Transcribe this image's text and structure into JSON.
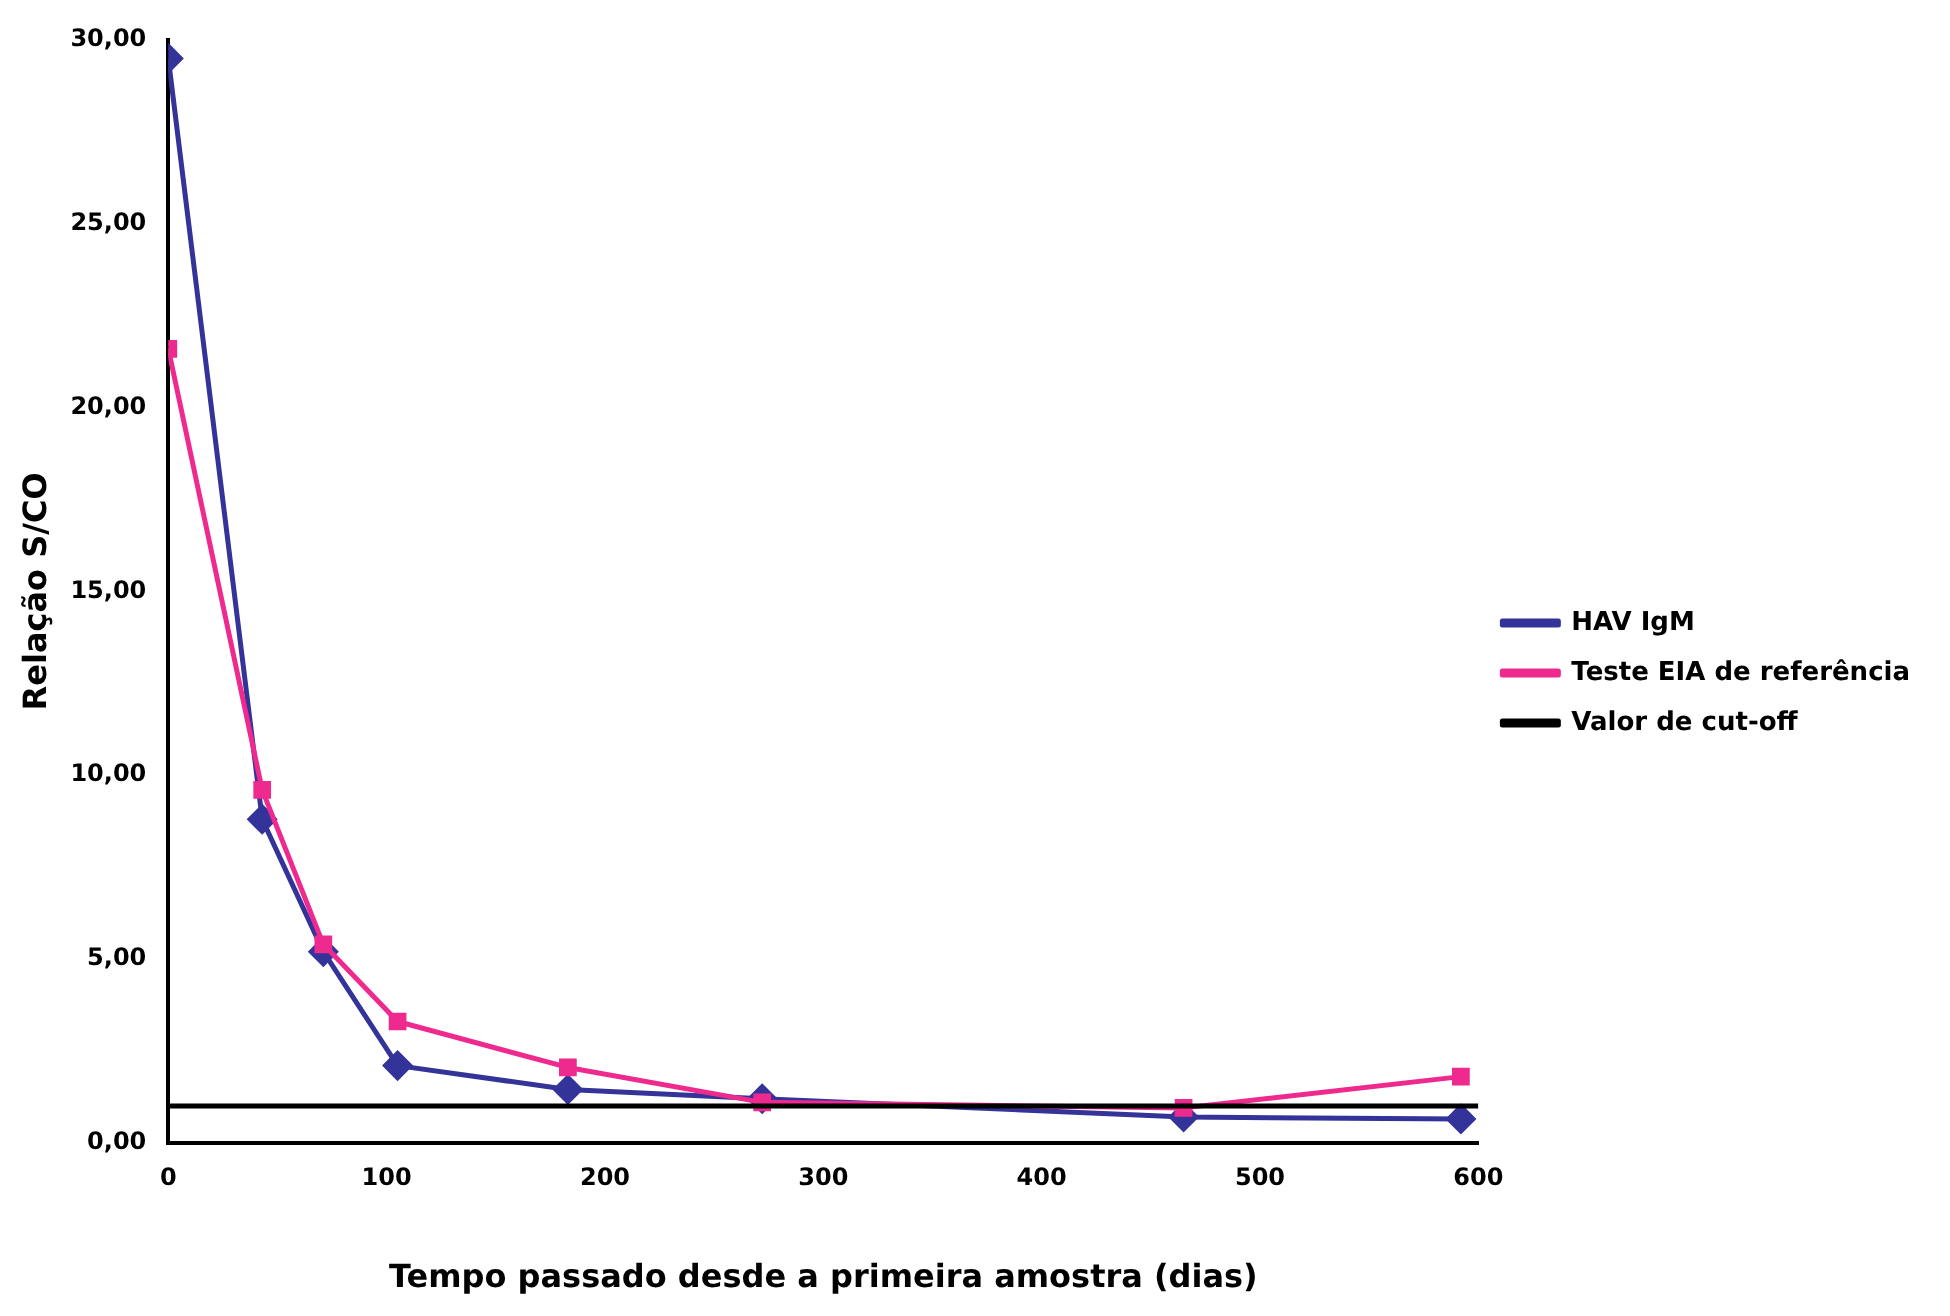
{
  "chart_data": {
    "type": "line",
    "xlabel": "Tempo passado desde a primeira amostra (dias)",
    "ylabel": "Relação S/CO",
    "xlim": [
      0,
      600
    ],
    "xticks": [
      0,
      100,
      200,
      300,
      400,
      500,
      600
    ],
    "ylim": [
      0,
      30
    ],
    "yticks": [
      {
        "value": 0,
        "label": "0,00"
      },
      {
        "value": 5,
        "label": "5,00"
      },
      {
        "value": 10,
        "label": "10,00"
      },
      {
        "value": 15,
        "label": "15,00"
      },
      {
        "value": 20,
        "label": "20,00"
      },
      {
        "value": 25,
        "label": "25,00"
      },
      {
        "value": 30,
        "label": "30,00"
      }
    ],
    "grid": false,
    "legend": "right",
    "line_style": "solid",
    "series": [
      {
        "name": "HAV IgM",
        "color": "#333399",
        "marker": "diamond",
        "x": [
          0,
          43,
          71,
          105,
          183,
          272,
          465,
          592
        ],
        "values": [
          29.5,
          8.8,
          5.2,
          2.1,
          1.45,
          1.2,
          0.7,
          0.65
        ]
      },
      {
        "name": "Teste EIA de referência",
        "color": "#ee2a8f",
        "marker": "square",
        "x": [
          0,
          43,
          71,
          105,
          183,
          272,
          465,
          592
        ],
        "values": [
          21.6,
          9.6,
          5.4,
          3.3,
          2.05,
          1.1,
          0.95,
          1.8
        ]
      },
      {
        "name": "Valor de cut-off",
        "color": "#000000",
        "marker": "none",
        "x": [
          0,
          600
        ],
        "values": [
          1,
          1
        ]
      }
    ]
  }
}
